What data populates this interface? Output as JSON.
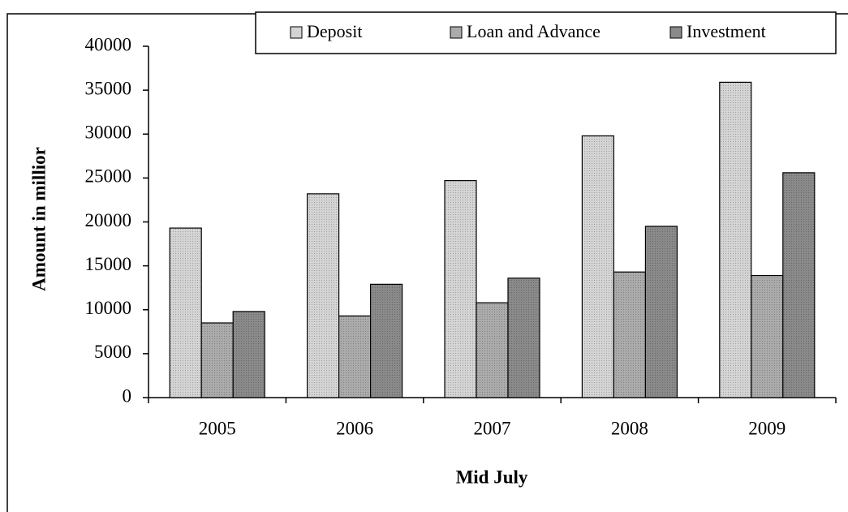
{
  "chart_data": {
    "type": "bar",
    "x_label": "Mid July",
    "y_label": "Amount in millior",
    "categories": [
      "2005",
      "2006",
      "2007",
      "2008",
      "2009"
    ],
    "series": [
      {
        "name": "Deposit",
        "color": "#d4d4d4",
        "values": [
          19300,
          23200,
          24700,
          29800,
          35900
        ]
      },
      {
        "name": "Loan and Advance",
        "color": "#ababab",
        "values": [
          8500,
          9300,
          10800,
          14300,
          13900
        ]
      },
      {
        "name": "Investment",
        "color": "#8a8a8a",
        "values": [
          9800,
          12900,
          13600,
          19500,
          25600
        ]
      }
    ],
    "ylim": [
      0,
      40000
    ],
    "yticks": [
      0,
      5000,
      10000,
      15000,
      20000,
      25000,
      30000,
      35000,
      40000
    ],
    "grid": false,
    "legend": "top"
  }
}
